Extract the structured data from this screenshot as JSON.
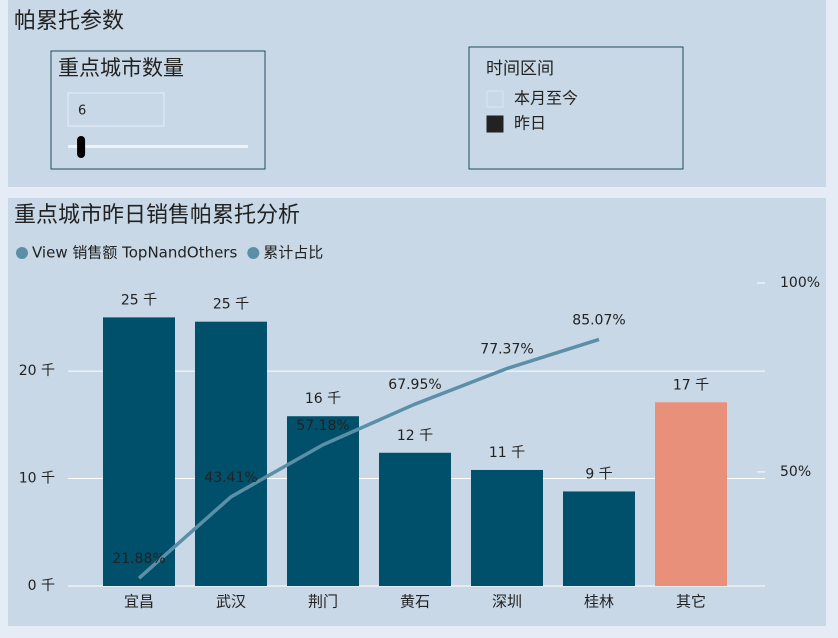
{
  "header": {
    "title": "帕累托参数"
  },
  "count_slicer": {
    "title": "重点城市数量",
    "value": 6,
    "min": 1,
    "max": 100
  },
  "time_slicer": {
    "title": "时间区间",
    "options": [
      {
        "label": "本月至今",
        "selected": false
      },
      {
        "label": "昨日",
        "selected": true
      }
    ]
  },
  "chart_data": {
    "type": "pareto",
    "title": "重点城市昨日销售帕累托分析",
    "categories": [
      "宜昌",
      "武汉",
      "荆门",
      "黄石",
      "深圳",
      "桂林",
      "其它"
    ],
    "series": [
      {
        "name": "View 销售额 TopNandOthers",
        "color": "#5b8fa8",
        "bar_colors": [
          "#00506b",
          "#00506b",
          "#00506b",
          "#00506b",
          "#00506b",
          "#00506b",
          "#e8907a"
        ],
        "values": [
          25.0,
          24.6,
          15.8,
          12.4,
          10.8,
          8.8,
          17.1
        ],
        "value_labels": [
          "25 千",
          "25 千",
          "16 千",
          "12 千",
          "11 千",
          "9 千",
          "17 千"
        ]
      },
      {
        "name": "累计占比",
        "color": "#5b8fa8",
        "axis": "y2",
        "values": [
          21.88,
          43.41,
          57.18,
          67.95,
          77.37,
          85.07,
          null
        ],
        "value_labels": [
          "21.88%",
          "43.41%",
          "57.18%",
          "67.95%",
          "77.37%",
          "85.07%",
          null
        ]
      }
    ],
    "ylim": [
      0,
      28.2
    ],
    "yticks": [
      {
        "value": 0,
        "label": "0 千"
      },
      {
        "value": 10,
        "label": "10 千"
      },
      {
        "value": 20,
        "label": "20 千"
      }
    ],
    "y2lim": [
      19.8,
      100
    ],
    "y2ticks": [
      {
        "value": 50,
        "label": "50%"
      },
      {
        "value": 100,
        "label": "100%"
      }
    ],
    "grid": true,
    "legend": "top-left"
  }
}
